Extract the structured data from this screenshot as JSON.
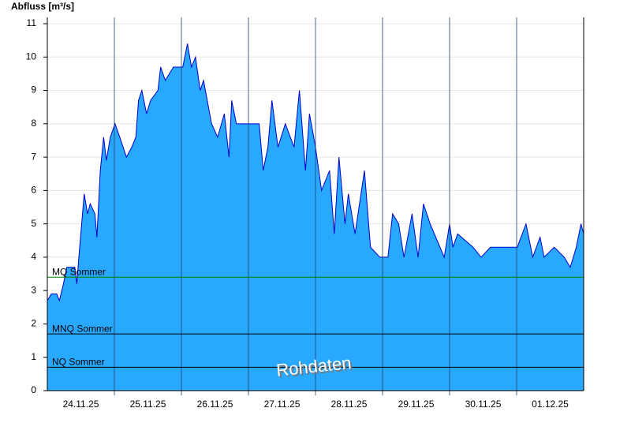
{
  "chart_data": {
    "type": "area",
    "y_label": "Abfluss [m³/s]",
    "watermark": "Rohdaten",
    "x": [
      0,
      0.06,
      0.14,
      0.18,
      0.24,
      0.29,
      0.41,
      0.44,
      0.47,
      0.55,
      0.6,
      0.64,
      0.71,
      0.74,
      0.79,
      0.84,
      0.88,
      0.94,
      1.01,
      1.08,
      1.18,
      1.26,
      1.32,
      1.36,
      1.41,
      1.48,
      1.54,
      1.65,
      1.69,
      1.76,
      1.88,
      2.02,
      2.09,
      2.15,
      2.21,
      2.28,
      2.33,
      2.45,
      2.54,
      2.64,
      2.71,
      2.75,
      2.82,
      3.01,
      3.16,
      3.22,
      3.29,
      3.35,
      3.44,
      3.55,
      3.68,
      3.76,
      3.85,
      3.91,
      4.0,
      4.09,
      4.21,
      4.28,
      4.35,
      4.44,
      4.49,
      4.59,
      4.73,
      4.82,
      4.96,
      5.08,
      5.15,
      5.24,
      5.32,
      5.44,
      5.53,
      5.61,
      5.71,
      5.92,
      6.0,
      6.05,
      6.12,
      6.35,
      6.47,
      6.61,
      7.01,
      7.14,
      7.24,
      7.35,
      7.41,
      7.56,
      7.71,
      7.8,
      7.89,
      7.96,
      8
    ],
    "series": [
      {
        "color": "#29a8ff",
        "line_color": "#0000cc",
        "values": [
          2.7,
          2.9,
          2.9,
          2.7,
          3.2,
          3.7,
          3.7,
          3.2,
          4.0,
          5.9,
          5.3,
          5.6,
          5.3,
          4.6,
          6.6,
          7.6,
          6.9,
          7.6,
          8.0,
          7.6,
          7.0,
          7.3,
          7.6,
          8.7,
          9.0,
          8.3,
          8.7,
          9.0,
          9.7,
          9.3,
          9.7,
          9.7,
          10.4,
          9.7,
          10.0,
          9.0,
          9.3,
          8.0,
          7.6,
          8.3,
          7.0,
          8.7,
          8.0,
          8.0,
          8.0,
          6.6,
          7.3,
          8.7,
          7.3,
          8.0,
          7.3,
          9.0,
          6.6,
          8.3,
          7.3,
          6.0,
          6.6,
          4.7,
          7.0,
          5.0,
          5.9,
          4.7,
          6.6,
          4.3,
          4.0,
          4.0,
          5.3,
          5.0,
          4.0,
          5.3,
          4.0,
          5.6,
          5.0,
          4.0,
          5.0,
          4.3,
          4.7,
          4.3,
          4.0,
          4.3,
          4.3,
          5.0,
          4.0,
          4.6,
          4.0,
          4.3,
          4.0,
          3.7,
          4.3,
          5.0,
          4.7
        ]
      }
    ],
    "xlim": [
      0,
      8
    ],
    "xticks": [
      {
        "value": 0.5,
        "label": "24.11.25"
      },
      {
        "value": 1.5,
        "label": "25.11.25"
      },
      {
        "value": 2.5,
        "label": "26.11.25"
      },
      {
        "value": 3.5,
        "label": "27.11.25"
      },
      {
        "value": 4.5,
        "label": "28.11.25"
      },
      {
        "value": 5.5,
        "label": "29.11.25"
      },
      {
        "value": 6.5,
        "label": "30.11.25"
      },
      {
        "value": 7.5,
        "label": "01.12.25"
      }
    ],
    "ylim": [
      0,
      11
    ],
    "yticks": [
      0,
      1,
      2,
      3,
      4,
      5,
      6,
      7,
      8,
      9,
      10,
      11
    ],
    "grid": true,
    "reference_lines": [
      {
        "name": "MQ Sommer",
        "value": 3.4,
        "color": "#008000"
      },
      {
        "name": "MNQ Sommer",
        "value": 1.7,
        "color": "#000000"
      },
      {
        "name": "NQ Sommer",
        "value": 0.7,
        "color": "#000000"
      }
    ]
  }
}
